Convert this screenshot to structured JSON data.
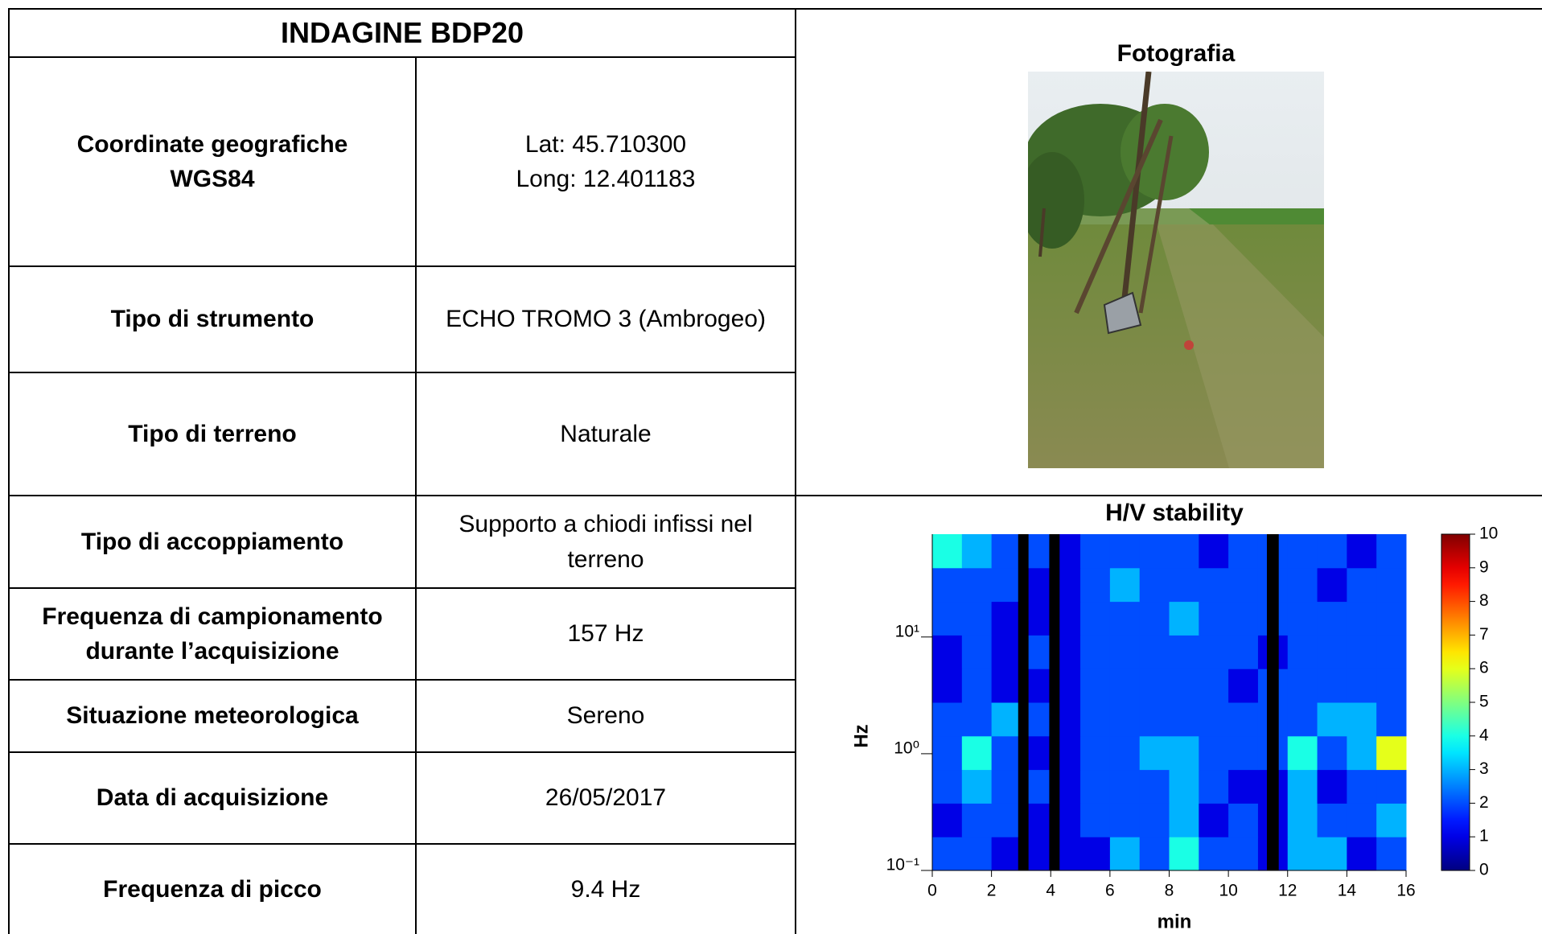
{
  "header": {
    "title": "INDAGINE BDP20"
  },
  "table": {
    "rows": [
      [
        "Coordinate geografiche\nWGS84",
        "Lat: 45.710300\nLong: 12.401183"
      ],
      [
        "Tipo di strumento",
        "ECHO TROMO 3 (Ambrogeo)"
      ],
      [
        "Tipo di terreno",
        "Naturale"
      ],
      [
        "Tipo di accoppiamento",
        "Supporto a chiodi infissi nel\nterreno"
      ],
      [
        "Frequenza di campionamento\ndurante l’acquisizione",
        "157 Hz"
      ],
      [
        "Situazione meteorologica",
        "Sereno"
      ],
      [
        "Data di acquisizione",
        "26/05/2017"
      ],
      [
        "Frequenza di picco",
        "9.4 Hz"
      ]
    ]
  },
  "photo": {
    "title": "Fotografia"
  },
  "chart_data": {
    "type": "heatmap",
    "title": "H/V stability",
    "xlabel": "min",
    "ylabel": "Hz",
    "xlim": [
      0,
      16
    ],
    "xticks": [
      0,
      2,
      4,
      6,
      8,
      10,
      12,
      14,
      16
    ],
    "ylim": [
      0.1,
      76
    ],
    "log_y": true,
    "yticks": [
      {
        "value": 0.1,
        "label": "10⁻¹"
      },
      {
        "value": 1,
        "label": "10⁰"
      },
      {
        "value": 10,
        "label": "10¹"
      }
    ],
    "zlim": [
      0,
      10
    ],
    "zticks": [
      0,
      1,
      2,
      3,
      4,
      5,
      6,
      7,
      8,
      9,
      10
    ],
    "masked_x": [
      [
        2.9,
        3.25
      ],
      [
        3.95,
        4.3
      ],
      [
        11.3,
        11.7
      ]
    ],
    "z": [
      [
        2,
        2,
        1,
        1,
        1,
        1,
        3,
        2,
        4,
        2,
        2,
        1,
        3,
        3,
        1,
        2
      ],
      [
        1,
        2,
        2,
        1,
        1,
        2,
        2,
        2,
        3,
        1,
        2,
        1,
        3,
        2,
        2,
        3
      ],
      [
        2,
        3,
        2,
        2,
        1,
        2,
        2,
        2,
        3,
        2,
        1,
        1,
        3,
        1,
        2,
        2
      ],
      [
        2,
        4,
        2,
        1,
        1,
        2,
        2,
        3,
        3,
        2,
        2,
        2,
        4,
        2,
        3,
        6
      ],
      [
        2,
        2,
        3,
        2,
        1,
        2,
        2,
        2,
        2,
        2,
        2,
        2,
        2,
        3,
        3,
        2
      ],
      [
        1,
        2,
        1,
        1,
        1,
        2,
        2,
        2,
        2,
        2,
        1,
        2,
        2,
        2,
        2,
        2
      ],
      [
        1,
        2,
        1,
        2,
        1,
        2,
        2,
        2,
        2,
        2,
        2,
        1,
        2,
        2,
        2,
        2
      ],
      [
        2,
        2,
        1,
        1,
        1,
        2,
        2,
        2,
        3,
        2,
        2,
        2,
        2,
        2,
        2,
        2
      ],
      [
        2,
        2,
        2,
        1,
        1,
        2,
        3,
        2,
        2,
        2,
        2,
        2,
        2,
        1,
        2,
        2
      ],
      [
        4,
        3,
        2,
        2,
        1,
        2,
        2,
        2,
        2,
        1,
        2,
        2,
        2,
        2,
        1,
        2
      ]
    ]
  }
}
